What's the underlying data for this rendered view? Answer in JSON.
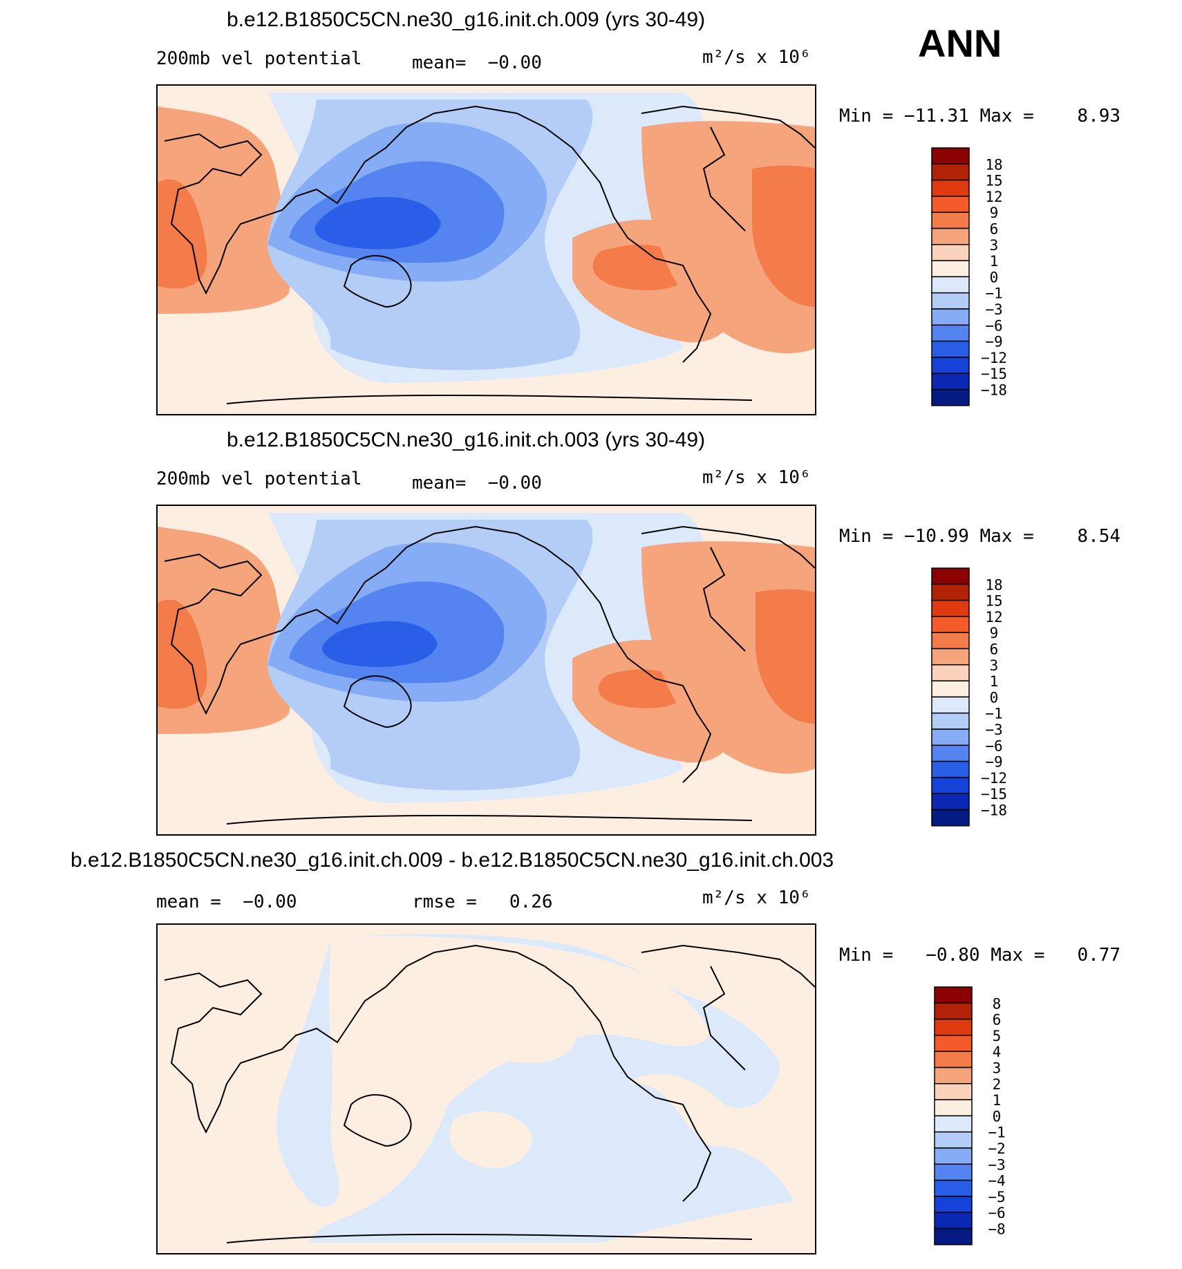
{
  "season": "ANN",
  "panels": [
    {
      "title": "b.e12.B1850C5CN.ne30_g16.init.ch.009 (yrs 30-49)",
      "left_label": "200mb vel potential",
      "mean_label": "mean=",
      "mean_value": "−0.00",
      "units": "m²/s x 10⁶",
      "min_label": "Min =",
      "min_value": "−11.31",
      "max_label": "Max =",
      "max_value": "8.93"
    },
    {
      "title": "b.e12.B1850C5CN.ne30_g16.init.ch.003 (yrs 30-49)",
      "left_label": "200mb vel potential",
      "mean_label": "mean=",
      "mean_value": "−0.00",
      "units": "m²/s x 10⁶",
      "min_label": "Min =",
      "min_value": "−10.99",
      "max_label": "Max =",
      "max_value": "8.54"
    },
    {
      "title": "b.e12.B1850C5CN.ne30_g16.init.ch.009 - b.e12.B1850C5CN.ne30_g16.init.ch.003",
      "mean_label": "mean =",
      "mean_value": "−0.00",
      "rmse_label": "rmse =",
      "rmse_value": "0.26",
      "units": "m²/s x 10⁶",
      "min_label": "Min =",
      "min_value": "−0.80",
      "max_label": "Max =",
      "max_value": "0.77"
    }
  ],
  "chart_data": [
    {
      "type": "heatmap",
      "title": "b.e12.B1850C5CN.ne30_g16.init.ch.009 (yrs 30-49)",
      "variable": "200mb vel potential",
      "units": "m2/s x 10^6",
      "min": -11.31,
      "max": 8.93,
      "mean": -0.0,
      "colorbar_levels": [
        18,
        15,
        12,
        9,
        6,
        3,
        1,
        0,
        -1,
        -3,
        -6,
        -9,
        -12,
        -15,
        -18
      ],
      "colorbar_labels": [
        "18",
        "15",
        "12",
        "9",
        "6",
        "3",
        "1",
        "0",
        "−1",
        "−3",
        "−6",
        "−9",
        "−12",
        "−15",
        "−18"
      ],
      "colorbar_colors": [
        "#8b0000",
        "#b22207",
        "#e03a10",
        "#f45a2a",
        "#f47c4b",
        "#f6a47c",
        "#fbd3bd",
        "#fdeee2",
        "#dbe9fa",
        "#b4cdf7",
        "#86acf5",
        "#5384ef",
        "#2a5ee7",
        "#1542d6",
        "#0a28b3",
        "#041b82"
      ]
    },
    {
      "type": "heatmap",
      "title": "b.e12.B1850C5CN.ne30_g16.init.ch.003 (yrs 30-49)",
      "variable": "200mb vel potential",
      "units": "m2/s x 10^6",
      "min": -10.99,
      "max": 8.54,
      "mean": -0.0,
      "colorbar_levels": [
        18,
        15,
        12,
        9,
        6,
        3,
        1,
        0,
        -1,
        -3,
        -6,
        -9,
        -12,
        -15,
        -18
      ],
      "colorbar_labels": [
        "18",
        "15",
        "12",
        "9",
        "6",
        "3",
        "1",
        "0",
        "−1",
        "−3",
        "−6",
        "−9",
        "−12",
        "−15",
        "−18"
      ],
      "colorbar_colors": [
        "#8b0000",
        "#b22207",
        "#e03a10",
        "#f45a2a",
        "#f47c4b",
        "#f6a47c",
        "#fbd3bd",
        "#fdeee2",
        "#dbe9fa",
        "#b4cdf7",
        "#86acf5",
        "#5384ef",
        "#2a5ee7",
        "#1542d6",
        "#0a28b3",
        "#041b82"
      ]
    },
    {
      "type": "heatmap",
      "title": "b.e12.B1850C5CN.ne30_g16.init.ch.009 - b.e12.B1850C5CN.ne30_g16.init.ch.003",
      "units": "m2/s x 10^6",
      "min": -0.8,
      "max": 0.77,
      "mean": -0.0,
      "rmse": 0.26,
      "colorbar_levels": [
        8,
        6,
        5,
        4,
        3,
        2,
        1,
        0,
        -1,
        -2,
        -3,
        -4,
        -5,
        -6,
        -8
      ],
      "colorbar_labels": [
        "8",
        "6",
        "5",
        "4",
        "3",
        "2",
        "1",
        "0",
        "−1",
        "−2",
        "−3",
        "−4",
        "−5",
        "−6",
        "−8"
      ],
      "colorbar_colors": [
        "#8b0000",
        "#b22207",
        "#e03a10",
        "#f45a2a",
        "#f47c4b",
        "#f6a47c",
        "#fbd3bd",
        "#fdeee2",
        "#dbe9fa",
        "#b4cdf7",
        "#86acf5",
        "#5384ef",
        "#2a5ee7",
        "#1542d6",
        "#0a28b3",
        "#041b82"
      ]
    }
  ]
}
